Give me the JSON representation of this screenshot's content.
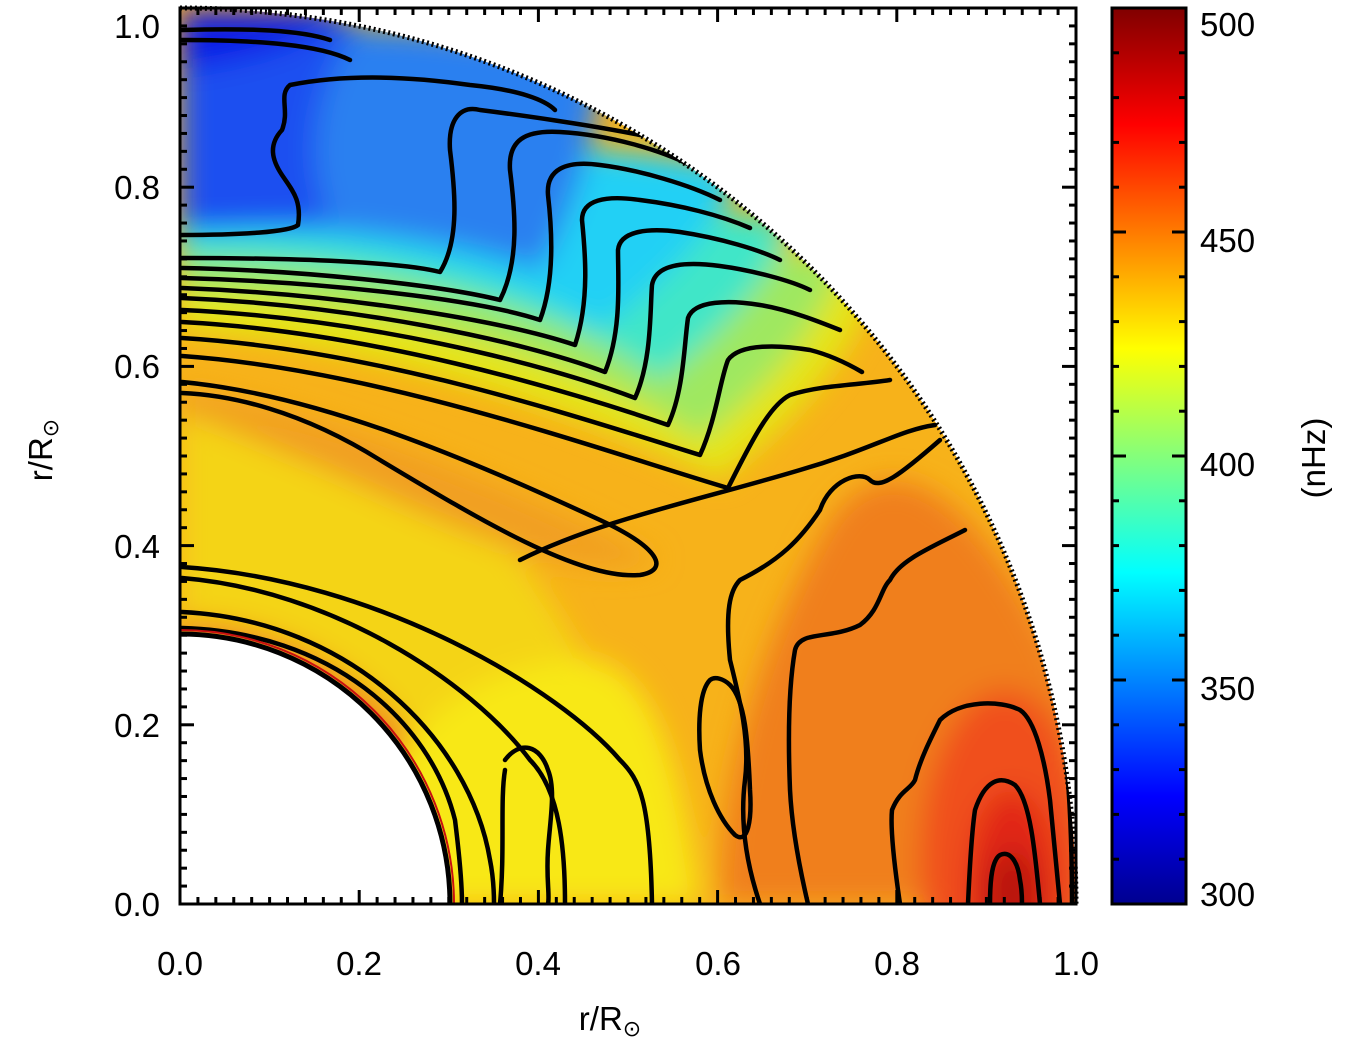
{
  "chart_data": {
    "type": "heatmap",
    "subtype": "meridional quadrant contour plot of solar rotation rate",
    "title": "",
    "xlabel": "r/R",
    "ylabel": "r/R",
    "axis_label_symbol": "⊙",
    "xlim": [
      0.0,
      1.0
    ],
    "ylim": [
      0.0,
      1.0
    ],
    "x_ticks": [
      "0.0",
      "0.2",
      "0.4",
      "0.6",
      "0.8",
      "1.0"
    ],
    "y_ticks": [
      "0.0",
      "0.2",
      "0.4",
      "0.6",
      "0.8",
      "1.0"
    ],
    "inner_radius": 0.3,
    "outer_radius": 1.0,
    "colorbar": {
      "label": "(nHz)",
      "min": 300,
      "max": 500,
      "ticks": [
        "300",
        "350",
        "400",
        "450",
        "500"
      ],
      "colormap": [
        "#00008f",
        "#0000ff",
        "#00ffff",
        "#ffff00",
        "#ff0000",
        "#800000"
      ]
    },
    "contours": {
      "description_values_nHz": "approximately equally spaced contours from ~335 to ~490 nHz",
      "equator_peak": {
        "r": 0.92,
        "value": 490
      },
      "polar_minimum": {
        "r": 0.9,
        "value": 330
      },
      "tachocline_radius": 0.7
    }
  }
}
